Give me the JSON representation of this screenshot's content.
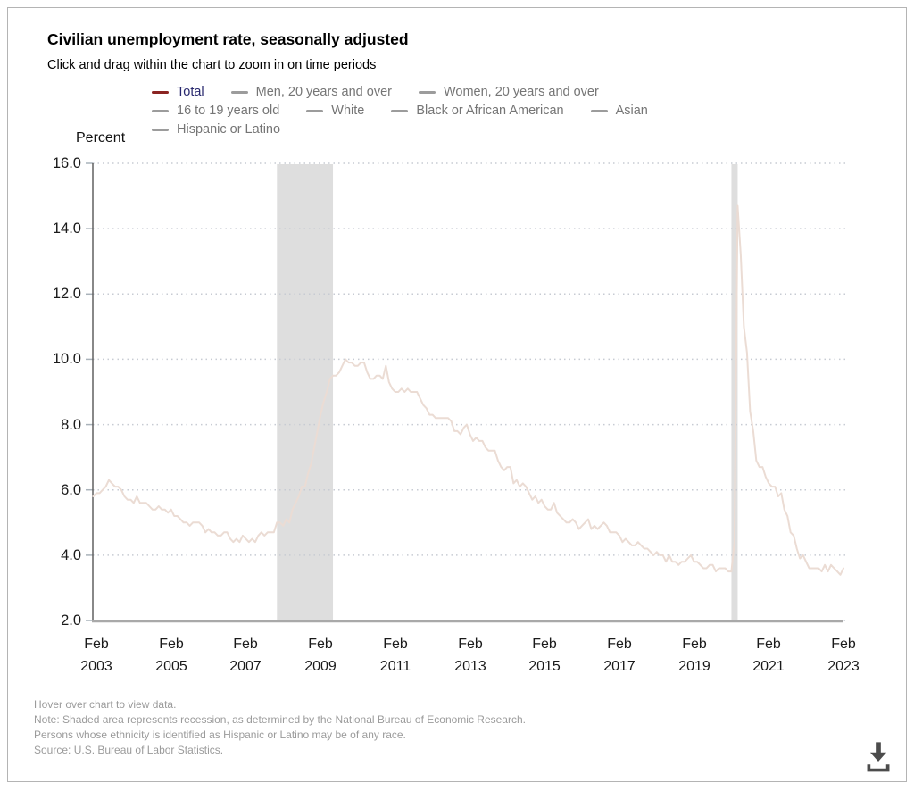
{
  "header": {
    "title": "Civilian unemployment rate, seasonally adjusted",
    "subtitle": "Click and drag within the chart to zoom in on time periods"
  },
  "chart_data": {
    "type": "line",
    "title": "Civilian unemployment rate, seasonally adjusted",
    "xlabel": "",
    "ylabel": "Percent",
    "ylim": [
      2.0,
      16.0
    ],
    "y_ticks": [
      16.0,
      14.0,
      12.0,
      10.0,
      8.0,
      6.0,
      4.0,
      2.0
    ],
    "grid": "dotted horizontal",
    "x_start": "2003-01",
    "x_end": "2023-02",
    "x_tick_labels": [
      {
        "month": "Feb",
        "year": "2003"
      },
      {
        "month": "Feb",
        "year": "2005"
      },
      {
        "month": "Feb",
        "year": "2007"
      },
      {
        "month": "Feb",
        "year": "2009"
      },
      {
        "month": "Feb",
        "year": "2011"
      },
      {
        "month": "Feb",
        "year": "2013"
      },
      {
        "month": "Feb",
        "year": "2015"
      },
      {
        "month": "Feb",
        "year": "2017"
      },
      {
        "month": "Feb",
        "year": "2019"
      },
      {
        "month": "Feb",
        "year": "2021"
      },
      {
        "month": "Feb",
        "year": "2023"
      }
    ],
    "series": [
      {
        "name": "Total",
        "frequency": "monthly",
        "line_color": "#ebdcd4",
        "legend_color": "#8b2422",
        "values": [
          5.8,
          5.9,
          5.9,
          6.0,
          6.1,
          6.3,
          6.2,
          6.1,
          6.1,
          6.0,
          5.8,
          5.7,
          5.7,
          5.6,
          5.8,
          5.6,
          5.6,
          5.6,
          5.5,
          5.4,
          5.4,
          5.5,
          5.4,
          5.4,
          5.3,
          5.4,
          5.2,
          5.2,
          5.1,
          5.0,
          5.0,
          4.9,
          5.0,
          5.0,
          5.0,
          4.9,
          4.7,
          4.8,
          4.7,
          4.7,
          4.6,
          4.6,
          4.7,
          4.7,
          4.5,
          4.4,
          4.5,
          4.4,
          4.6,
          4.5,
          4.4,
          4.5,
          4.4,
          4.6,
          4.7,
          4.6,
          4.7,
          4.7,
          4.7,
          5.0,
          5.0,
          4.9,
          5.1,
          5.0,
          5.4,
          5.6,
          5.8,
          6.1,
          6.1,
          6.5,
          6.8,
          7.3,
          7.8,
          8.3,
          8.7,
          9.0,
          9.4,
          9.5,
          9.5,
          9.6,
          9.8,
          10.0,
          9.9,
          9.9,
          9.8,
          9.8,
          9.9,
          9.9,
          9.6,
          9.4,
          9.4,
          9.5,
          9.5,
          9.4,
          9.8,
          9.3,
          9.1,
          9.0,
          9.0,
          9.1,
          9.0,
          9.1,
          9.0,
          9.0,
          9.0,
          8.8,
          8.6,
          8.5,
          8.3,
          8.3,
          8.2,
          8.2,
          8.2,
          8.2,
          8.2,
          8.1,
          7.8,
          7.8,
          7.7,
          7.9,
          8.0,
          7.7,
          7.5,
          7.6,
          7.5,
          7.5,
          7.3,
          7.2,
          7.2,
          7.2,
          6.9,
          6.7,
          6.6,
          6.7,
          6.7,
          6.2,
          6.3,
          6.1,
          6.2,
          6.1,
          5.9,
          5.7,
          5.8,
          5.6,
          5.7,
          5.5,
          5.4,
          5.4,
          5.6,
          5.3,
          5.2,
          5.1,
          5.0,
          5.0,
          5.1,
          5.0,
          4.8,
          4.9,
          5.0,
          5.1,
          4.8,
          4.9,
          4.8,
          4.9,
          5.0,
          4.9,
          4.7,
          4.7,
          4.7,
          4.6,
          4.4,
          4.5,
          4.4,
          4.3,
          4.3,
          4.4,
          4.3,
          4.2,
          4.2,
          4.1,
          4.0,
          4.1,
          4.0,
          4.0,
          3.8,
          4.0,
          3.8,
          3.8,
          3.7,
          3.8,
          3.8,
          3.9,
          4.0,
          3.8,
          3.8,
          3.7,
          3.6,
          3.6,
          3.7,
          3.7,
          3.5,
          3.6,
          3.6,
          3.6,
          3.5,
          3.5,
          4.4,
          14.7,
          13.2,
          11.0,
          10.2,
          8.4,
          7.8,
          6.9,
          6.7,
          6.7,
          6.4,
          6.2,
          6.1,
          6.1,
          5.8,
          5.9,
          5.4,
          5.2,
          4.7,
          4.6,
          4.2,
          3.9,
          4.0,
          3.8,
          3.6,
          3.6,
          3.6,
          3.6,
          3.5,
          3.7,
          3.5,
          3.7,
          3.6,
          3.5,
          3.4,
          3.6
        ]
      }
    ],
    "recessions": [
      {
        "start": "2007-12",
        "end": "2009-06"
      },
      {
        "start": "2020-02",
        "end": "2020-04"
      }
    ],
    "legend": {
      "position": "top",
      "rows": [
        [
          {
            "label": "Total",
            "swatch_color": "#8b2422",
            "label_color": "#28286e",
            "active": true
          },
          {
            "label": "Men, 20 years and over",
            "swatch_color": "#9c9c9c",
            "label_color": "#757575",
            "active": false
          },
          {
            "label": "Women, 20 years and over",
            "swatch_color": "#9c9c9c",
            "label_color": "#757575",
            "active": false
          }
        ],
        [
          {
            "label": "16 to 19 years old",
            "swatch_color": "#9c9c9c",
            "label_color": "#757575",
            "active": false
          },
          {
            "label": "White",
            "swatch_color": "#9c9c9c",
            "label_color": "#757575",
            "active": false
          },
          {
            "label": "Black or African American",
            "swatch_color": "#9c9c9c",
            "label_color": "#757575",
            "active": false
          },
          {
            "label": "Asian",
            "swatch_color": "#9c9c9c",
            "label_color": "#757575",
            "active": false
          }
        ],
        [
          {
            "label": "Hispanic or Latino",
            "swatch_color": "#9c9c9c",
            "label_color": "#757575",
            "active": false
          }
        ]
      ]
    },
    "colors": {
      "recession_band": "#dedede",
      "gridline": "#c7cbd3",
      "y_axis_line": "#606060",
      "x_axis_line": "#a9a9a9",
      "tick_mark": "#a9b2ba"
    }
  },
  "footer": {
    "lines": [
      "Hover over chart to view data.",
      "Note: Shaded area represents recession, as determined by the National Bureau of Economic Research.",
      "Persons whose ethnicity is identified as Hispanic or Latino may be of any race.",
      "Source: U.S. Bureau of Labor Statistics."
    ]
  },
  "download": {
    "tooltip": "Download",
    "icon": "download-icon",
    "color": "#4c4c4c"
  }
}
